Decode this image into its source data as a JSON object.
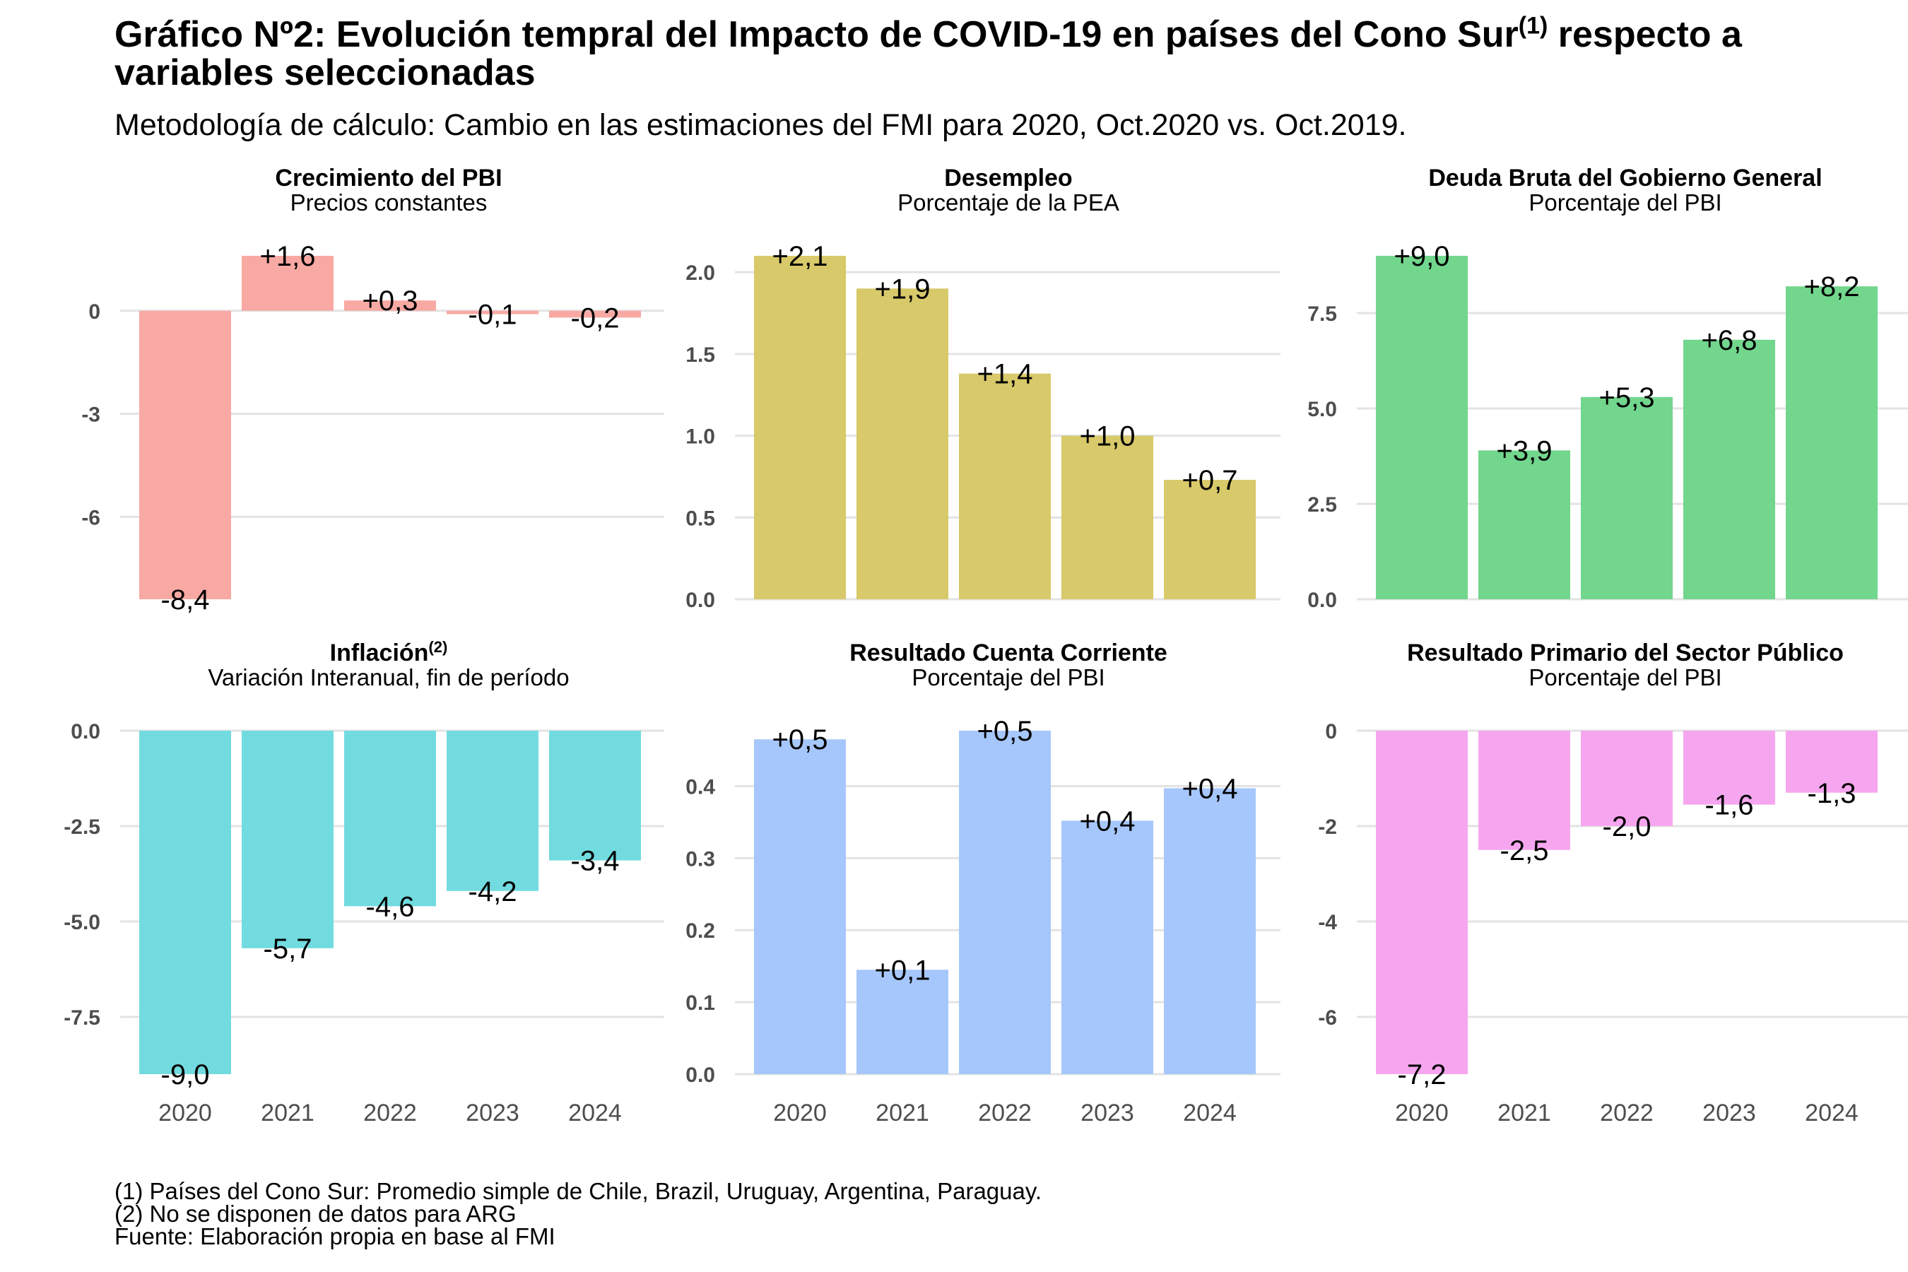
{
  "title_main": "Gráfico Nº2: Evolución tempral del Impacto de COVID-19 en países del Cono Sur",
  "title_sup": "(1)",
  "title_tail": " respecto a variables seleccionadas",
  "subtitle": "Metodología de cálculo: Cambio en las estimaciones del FMI para 2020, Oct.2020 vs. Oct.2019.",
  "footnotes": [
    "(1) Países del Cono Sur: Promedio simple de Chile, Brazil, Uruguay, Argentina, Paraguay.",
    "(2) No se disponen de datos para ARG",
    "Fuente: Elaboración propia en base al FMI"
  ],
  "colors": {
    "Crecimiento del PBI": "#f8a9a4",
    "Desempleo": "#d8c96a",
    "Deuda Bruta del Gobierno General": "#72d68d",
    "Inflación": "#72dbdf",
    "Resultado Cuenta Corriente": "#a6c7fb",
    "Resultado Primario del Sector Público": "#f6a6ef",
    "gridline": "#e3e3e3",
    "axis_text": "#4d4d4d"
  },
  "chart_data": [
    {
      "type": "bar",
      "title": "Crecimiento del PBI",
      "title_sup": "",
      "subtitle": "Precios constantes",
      "categories": [
        "2020",
        "2021",
        "2022",
        "2023",
        "2024"
      ],
      "values": [
        -8.4,
        1.6,
        0.3,
        -0.1,
        -0.2
      ],
      "value_labels": [
        "-8,4",
        "+1,6",
        "+0,3",
        "-0,1",
        "-0,2"
      ],
      "yticks": [
        0,
        -3,
        -6
      ],
      "ytick_labels": [
        "0",
        "-3",
        "-6"
      ],
      "ylim": [
        -8.4,
        1.6
      ],
      "show_xlabels": false,
      "grid": true
    },
    {
      "type": "bar",
      "title": "Desempleo",
      "title_sup": "",
      "subtitle": "Porcentaje de la PEA",
      "categories": [
        "2020",
        "2021",
        "2022",
        "2023",
        "2024"
      ],
      "values": [
        2.1,
        1.9,
        1.38,
        1.0,
        0.73
      ],
      "value_labels": [
        "+2,1",
        "+1,9",
        "+1,4",
        "+1,0",
        "+0,7"
      ],
      "yticks": [
        0,
        0.5,
        1,
        1.5,
        2
      ],
      "ytick_labels": [
        "0.0",
        "0.5",
        "1.0",
        "1.5",
        "2.0"
      ],
      "ylim": [
        0,
        2.1
      ],
      "show_xlabels": false,
      "grid": true
    },
    {
      "type": "bar",
      "title": "Deuda Bruta del Gobierno General",
      "title_sup": "",
      "subtitle": "Porcentaje del PBI",
      "categories": [
        "2020",
        "2021",
        "2022",
        "2023",
        "2024"
      ],
      "values": [
        9.0,
        3.9,
        5.3,
        6.8,
        8.2
      ],
      "value_labels": [
        "+9,0",
        "+3,9",
        "+5,3",
        "+6,8",
        "+8,2"
      ],
      "yticks": [
        0,
        2.5,
        5,
        7.5
      ],
      "ytick_labels": [
        "0.0",
        "2.5",
        "5.0",
        "7.5"
      ],
      "ylim": [
        0,
        9.0
      ],
      "show_xlabels": false,
      "grid": true
    },
    {
      "type": "bar",
      "title": "Inflación",
      "title_sup": "(2)",
      "subtitle": "Variación Interanual, fin de período",
      "categories": [
        "2020",
        "2021",
        "2022",
        "2023",
        "2024"
      ],
      "values": [
        -9.0,
        -5.7,
        -4.6,
        -4.2,
        -3.4
      ],
      "value_labels": [
        "-9,0",
        "-5,7",
        "-4,6",
        "-4,2",
        "-3,4"
      ],
      "yticks": [
        0,
        -2.5,
        -5,
        -7.5
      ],
      "ytick_labels": [
        "0.0",
        "-2.5",
        "-5.0",
        "-7.5"
      ],
      "ylim": [
        -9.0,
        0
      ],
      "show_xlabels": true,
      "grid": true
    },
    {
      "type": "bar",
      "title": "Resultado Cuenta Corriente",
      "title_sup": "",
      "subtitle": "Porcentaje del PBI",
      "categories": [
        "2020",
        "2021",
        "2022",
        "2023",
        "2024"
      ],
      "values": [
        0.465,
        0.145,
        0.477,
        0.352,
        0.397
      ],
      "value_labels": [
        "+0,5",
        "+0,1",
        "+0,5",
        "+0,4",
        "+0,4"
      ],
      "yticks": [
        0,
        0.1,
        0.2,
        0.3,
        0.4
      ],
      "ytick_labels": [
        "0.0",
        "0.1",
        "0.2",
        "0.3",
        "0.4"
      ],
      "ylim": [
        0,
        0.477
      ],
      "show_xlabels": true,
      "grid": true
    },
    {
      "type": "bar",
      "title": "Resultado Primario del Sector Público",
      "title_sup": "",
      "subtitle": "Porcentaje del PBI",
      "categories": [
        "2020",
        "2021",
        "2022",
        "2023",
        "2024"
      ],
      "values": [
        -7.2,
        -2.5,
        -2.0,
        -1.55,
        -1.3
      ],
      "value_labels": [
        "-7,2",
        "-2,5",
        "-2,0",
        "-1,6",
        "-1,3"
      ],
      "yticks": [
        0,
        -2,
        -4,
        -6
      ],
      "ytick_labels": [
        "0",
        "-2",
        "-4",
        "-6"
      ],
      "ylim": [
        -7.2,
        0
      ],
      "show_xlabels": true,
      "grid": true
    }
  ]
}
